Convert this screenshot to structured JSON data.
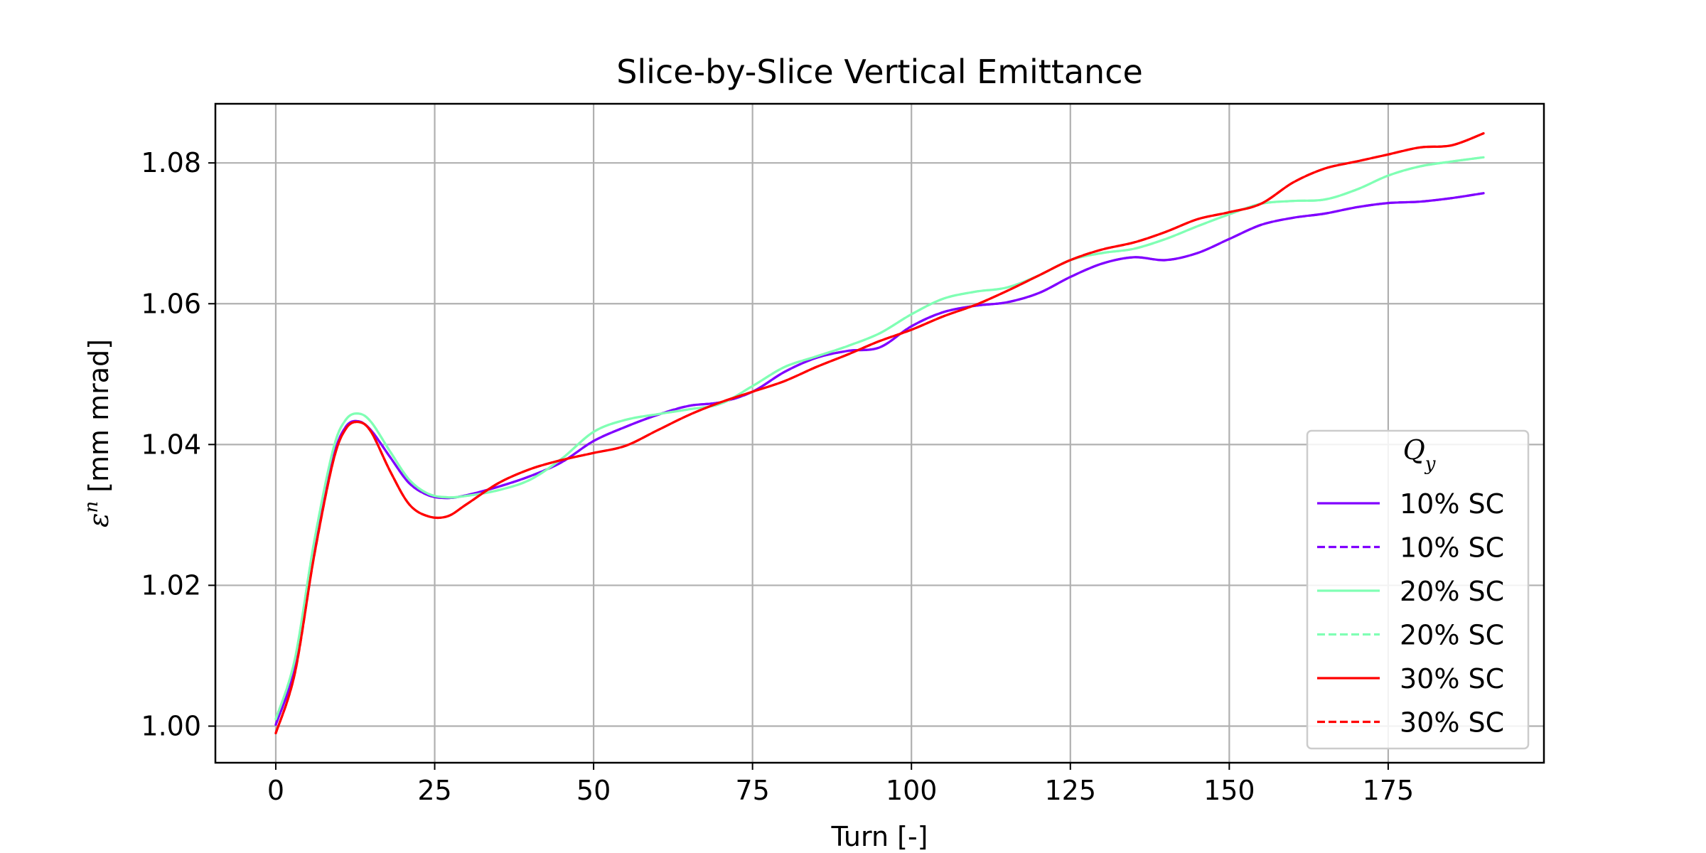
{
  "chart_data": {
    "type": "line",
    "title": "Slice-by-Slice Vertical Emittance",
    "xlabel": "Turn [-]",
    "ylabel_symbol": "ε",
    "ylabel_superscript": "n",
    "ylabel_unit": " [mm mrad]",
    "xlim": [
      -9.5,
      199.5
    ],
    "ylim": [
      0.9948,
      1.0884
    ],
    "xticks": [
      0,
      25,
      50,
      75,
      100,
      125,
      150,
      175
    ],
    "xtick_labels": [
      "0",
      "25",
      "50",
      "75",
      "100",
      "125",
      "150",
      "175"
    ],
    "yticks": [
      1.0,
      1.02,
      1.04,
      1.06,
      1.08
    ],
    "ytick_labels": [
      "1.00",
      "1.02",
      "1.04",
      "1.06",
      "1.08"
    ],
    "grid": true,
    "legend_placement": "lower-right",
    "legend_title": "Q",
    "legend_title_sub": "y",
    "series": [
      {
        "name": "10% SC",
        "color": "#8000ff",
        "dash": "solid",
        "x": [
          0,
          3,
          6,
          9,
          11,
          13,
          15,
          18,
          21,
          24,
          27,
          30,
          35,
          40,
          45,
          50,
          55,
          60,
          65,
          70,
          75,
          80,
          85,
          90,
          95,
          100,
          105,
          110,
          115,
          120,
          125,
          130,
          135,
          140,
          145,
          150,
          155,
          160,
          165,
          170,
          175,
          180,
          185,
          190
        ],
        "y": [
          1.0002,
          1.0085,
          1.025,
          1.038,
          1.0425,
          1.0433,
          1.042,
          1.0382,
          1.0345,
          1.0328,
          1.0324,
          1.0328,
          1.034,
          1.0355,
          1.0375,
          1.0405,
          1.0425,
          1.0442,
          1.0455,
          1.046,
          1.0475,
          1.0503,
          1.0523,
          1.0533,
          1.0538,
          1.0568,
          1.0588,
          1.0597,
          1.0602,
          1.0615,
          1.0638,
          1.0657,
          1.0666,
          1.0662,
          1.0672,
          1.0692,
          1.0712,
          1.0722,
          1.0728,
          1.0737,
          1.0743,
          1.0745,
          1.075,
          1.0757
        ]
      },
      {
        "name": "10% SC",
        "color": "#8000ff",
        "dash": "dashed",
        "x": [
          0,
          3,
          6,
          9,
          11,
          13,
          15,
          18,
          21,
          24,
          27,
          30,
          35,
          40,
          45,
          50,
          55,
          60,
          65,
          70,
          75,
          80,
          85,
          90,
          95,
          100,
          105,
          110,
          115,
          120,
          125,
          130,
          135,
          140,
          145,
          150,
          155,
          160,
          165,
          170,
          175,
          180,
          185,
          190
        ],
        "y": [
          1.0002,
          1.0085,
          1.025,
          1.038,
          1.0425,
          1.0433,
          1.042,
          1.0382,
          1.0345,
          1.0328,
          1.0324,
          1.0328,
          1.034,
          1.0355,
          1.0375,
          1.0405,
          1.0425,
          1.0442,
          1.0455,
          1.046,
          1.0475,
          1.0503,
          1.0523,
          1.0533,
          1.0538,
          1.0568,
          1.0588,
          1.0597,
          1.0602,
          1.0615,
          1.0638,
          1.0657,
          1.0666,
          1.0662,
          1.0672,
          1.0692,
          1.0712,
          1.0722,
          1.0728,
          1.0737,
          1.0743,
          1.0745,
          1.075,
          1.0757
        ]
      },
      {
        "name": "20% SC",
        "color": "#80ffb4",
        "dash": "solid",
        "x": [
          0,
          3,
          6,
          9,
          11,
          13,
          15,
          18,
          21,
          24,
          27,
          30,
          35,
          40,
          45,
          50,
          55,
          60,
          65,
          70,
          75,
          80,
          85,
          90,
          95,
          100,
          105,
          110,
          115,
          120,
          125,
          130,
          135,
          140,
          145,
          150,
          155,
          160,
          165,
          170,
          175,
          180,
          185,
          190
        ],
        "y": [
          1.001,
          1.0095,
          1.026,
          1.0392,
          1.0435,
          1.0444,
          1.0432,
          1.039,
          1.035,
          1.033,
          1.0325,
          1.0327,
          1.0335,
          1.035,
          1.038,
          1.0418,
          1.0435,
          1.0443,
          1.045,
          1.0458,
          1.0483,
          1.051,
          1.0525,
          1.054,
          1.0558,
          1.0585,
          1.0607,
          1.0617,
          1.0623,
          1.064,
          1.0662,
          1.0672,
          1.0678,
          1.0692,
          1.071,
          1.0727,
          1.0742,
          1.0746,
          1.0748,
          1.0762,
          1.0782,
          1.0795,
          1.0802,
          1.0808
        ]
      },
      {
        "name": "20% SC",
        "color": "#80ffb4",
        "dash": "dashed",
        "x": [
          0,
          3,
          6,
          9,
          11,
          13,
          15,
          18,
          21,
          24,
          27,
          30,
          35,
          40,
          45,
          50,
          55,
          60,
          65,
          70,
          75,
          80,
          85,
          90,
          95,
          100,
          105,
          110,
          115,
          120,
          125,
          130,
          135,
          140,
          145,
          150,
          155,
          160,
          165,
          170,
          175,
          180,
          185,
          190
        ],
        "y": [
          1.001,
          1.0095,
          1.026,
          1.0392,
          1.0435,
          1.0444,
          1.0432,
          1.039,
          1.035,
          1.033,
          1.0325,
          1.0327,
          1.0335,
          1.035,
          1.038,
          1.0418,
          1.0435,
          1.0443,
          1.045,
          1.0458,
          1.0483,
          1.051,
          1.0525,
          1.054,
          1.0558,
          1.0585,
          1.0607,
          1.0617,
          1.0623,
          1.064,
          1.0662,
          1.0672,
          1.0678,
          1.0692,
          1.071,
          1.0727,
          1.0742,
          1.0746,
          1.0748,
          1.0762,
          1.0782,
          1.0795,
          1.0802,
          1.0808
        ]
      },
      {
        "name": "30% SC",
        "color": "#ff0000",
        "dash": "solid",
        "x": [
          0,
          3,
          6,
          9,
          11,
          13,
          15,
          18,
          21,
          24,
          27,
          30,
          35,
          40,
          45,
          50,
          55,
          60,
          65,
          70,
          75,
          80,
          85,
          90,
          95,
          100,
          105,
          110,
          115,
          120,
          125,
          130,
          135,
          140,
          145,
          150,
          155,
          160,
          165,
          170,
          175,
          180,
          185,
          190
        ],
        "y": [
          0.999,
          1.0075,
          1.024,
          1.0375,
          1.0422,
          1.0432,
          1.0418,
          1.0362,
          1.0315,
          1.0298,
          1.0298,
          1.0315,
          1.0345,
          1.0365,
          1.0378,
          1.0388,
          1.0398,
          1.042,
          1.0442,
          1.046,
          1.0475,
          1.049,
          1.051,
          1.0528,
          1.0547,
          1.0563,
          1.0582,
          1.0598,
          1.0618,
          1.064,
          1.0662,
          1.0677,
          1.0687,
          1.0702,
          1.072,
          1.073,
          1.0742,
          1.0772,
          1.0792,
          1.0802,
          1.0812,
          1.0822,
          1.0825,
          1.0842
        ]
      },
      {
        "name": "30% SC",
        "color": "#ff0000",
        "dash": "dashed",
        "x": [
          0,
          3,
          6,
          9,
          11,
          13,
          15,
          18,
          21,
          24,
          27,
          30,
          35,
          40,
          45,
          50,
          55,
          60,
          65,
          70,
          75,
          80,
          85,
          90,
          95,
          100,
          105,
          110,
          115,
          120,
          125,
          130,
          135,
          140,
          145,
          150,
          155,
          160,
          165,
          170,
          175,
          180,
          185,
          190
        ],
        "y": [
          0.999,
          1.0075,
          1.024,
          1.0375,
          1.0422,
          1.0432,
          1.0418,
          1.0362,
          1.0315,
          1.0298,
          1.0298,
          1.0315,
          1.0345,
          1.0365,
          1.0378,
          1.0388,
          1.0398,
          1.042,
          1.0442,
          1.046,
          1.0475,
          1.049,
          1.051,
          1.0528,
          1.0547,
          1.0563,
          1.0582,
          1.0598,
          1.0618,
          1.064,
          1.0662,
          1.0677,
          1.0687,
          1.0702,
          1.072,
          1.073,
          1.0742,
          1.0772,
          1.0792,
          1.0802,
          1.0812,
          1.0822,
          1.0825,
          1.0842
        ]
      }
    ]
  }
}
